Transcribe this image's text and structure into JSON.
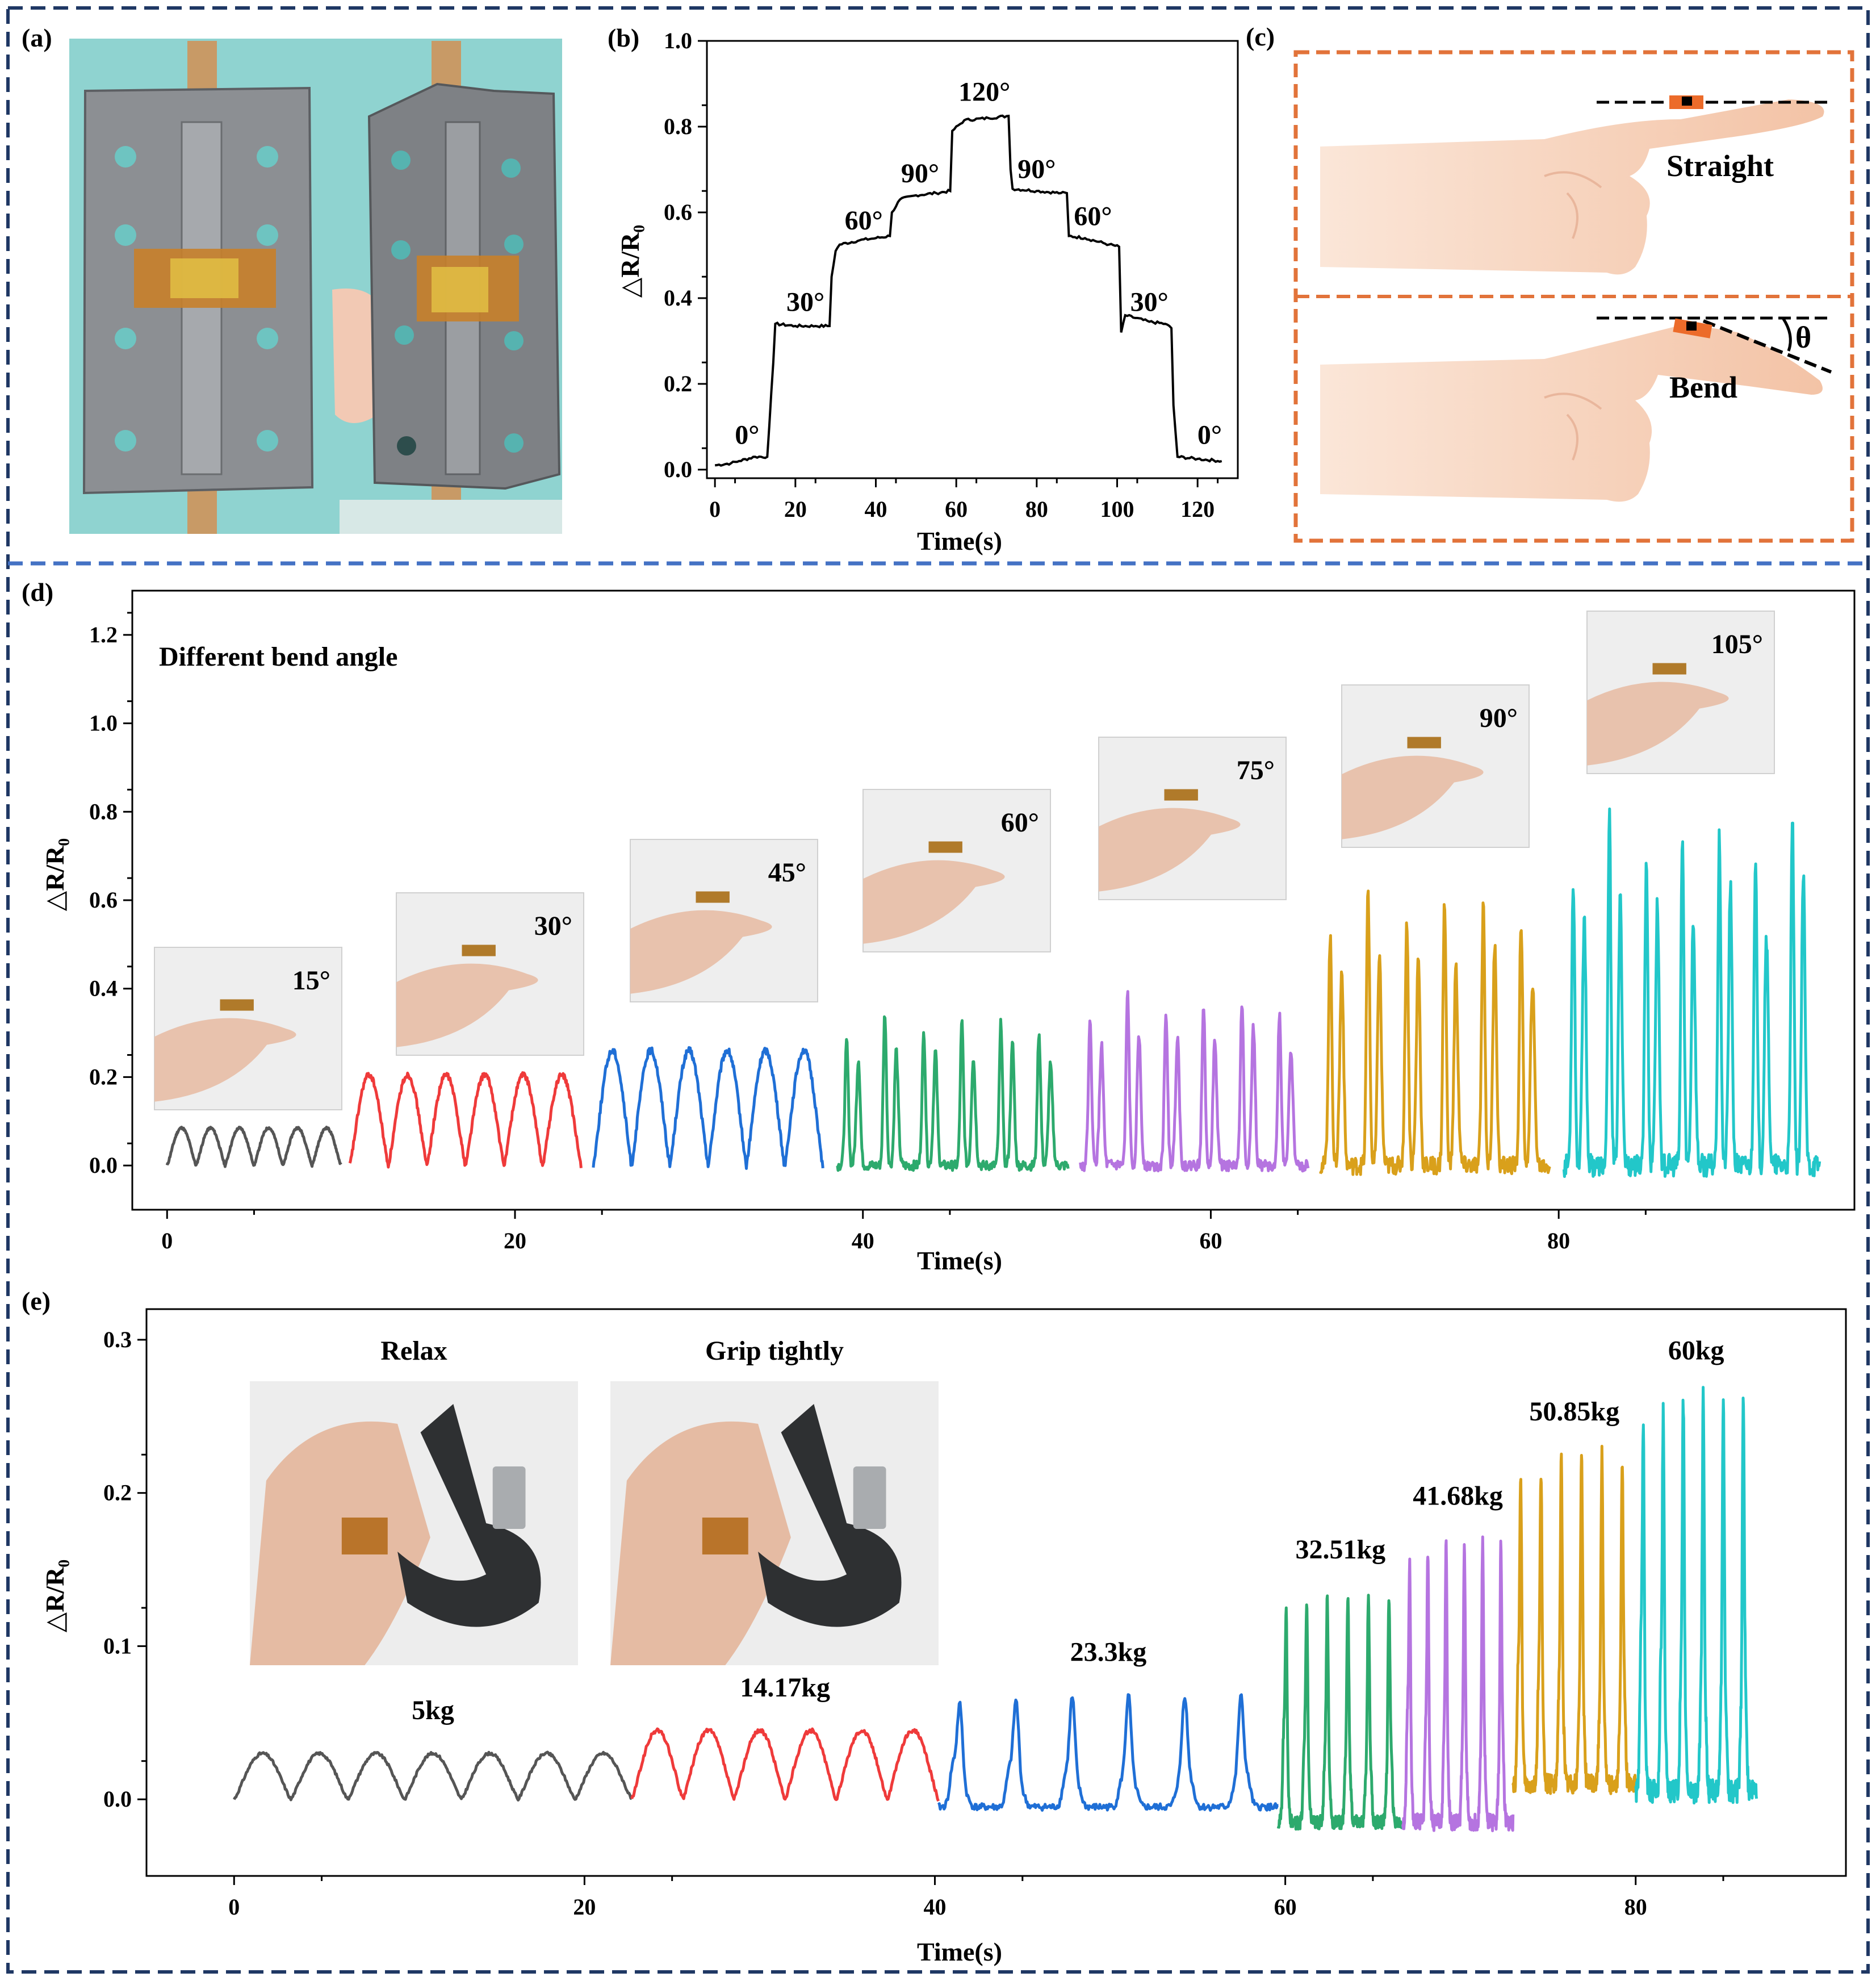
{
  "panels": {
    "a": "(a)",
    "b": "(b)",
    "c": "(c)",
    "d": "(d)",
    "e": "(e)"
  },
  "colors": {
    "frame": "#1f3864",
    "divider": "#4472c4",
    "orange": "#e2733a",
    "skin": "#f6d2bb",
    "s1": "#555555",
    "s2": "#ef3a3a",
    "s3": "#1f6fd6",
    "s4": "#2daa6d",
    "s5": "#b574e0",
    "s6": "#d9a01b",
    "s7": "#22c7c9"
  },
  "panel_c": {
    "straight_label": "Straight",
    "bend_label": "Bend",
    "theta_label": "θ",
    "icons": [
      "finger-straight-illustration",
      "finger-bend-illustration",
      "sensor-patch-icon"
    ]
  },
  "panel_a": {
    "photo": "hinge-photo-with-sensor"
  },
  "chart_data": [
    {
      "id": "b",
      "type": "line",
      "title": "",
      "xlabel": "Time(s)",
      "ylabel": "△R/R₀",
      "xlim": [
        -2,
        130
      ],
      "ylim": [
        -0.02,
        1.0
      ],
      "xticks": [
        "0",
        "20",
        "40",
        "60",
        "80",
        "100",
        "120"
      ],
      "yticks": [
        "0.0",
        "0.2",
        "0.4",
        "0.6",
        "0.8",
        "1.0"
      ],
      "series": [
        {
          "x": [
            0,
            4,
            6,
            10,
            13,
            13.5,
            14.5,
            15,
            20,
            25,
            28.5,
            29,
            30,
            31,
            36,
            40,
            43.5,
            44,
            46,
            50,
            55,
            58.5,
            59,
            62,
            68,
            73,
            73.5,
            74,
            80,
            86,
            87.5,
            88,
            92,
            98,
            100.5,
            101,
            102,
            108,
            112,
            113.5,
            114,
            115,
            120,
            126
          ],
          "y": [
            0.01,
            0.015,
            0.02,
            0.03,
            0.03,
            0.1,
            0.25,
            0.34,
            0.335,
            0.335,
            0.335,
            0.45,
            0.51,
            0.525,
            0.535,
            0.54,
            0.545,
            0.6,
            0.63,
            0.64,
            0.645,
            0.65,
            0.79,
            0.815,
            0.82,
            0.825,
            0.7,
            0.655,
            0.65,
            0.645,
            0.645,
            0.545,
            0.54,
            0.525,
            0.52,
            0.32,
            0.36,
            0.345,
            0.34,
            0.33,
            0.15,
            0.03,
            0.025,
            0.02
          ]
        }
      ],
      "annotations": [
        {
          "text": "0°",
          "x": 8,
          "y": 0.06
        },
        {
          "text": "30°",
          "x": 22.5,
          "y": 0.37
        },
        {
          "text": "60°",
          "x": 37,
          "y": 0.56
        },
        {
          "text": "90°",
          "x": 51,
          "y": 0.67
        },
        {
          "text": "120°",
          "x": 67,
          "y": 0.86
        },
        {
          "text": "90°",
          "x": 80,
          "y": 0.68
        },
        {
          "text": "60°",
          "x": 94,
          "y": 0.57
        },
        {
          "text": "30°",
          "x": 108,
          "y": 0.37
        },
        {
          "text": "0°",
          "x": 123,
          "y": 0.06
        }
      ]
    },
    {
      "id": "d",
      "type": "line",
      "title": "Different bend angle",
      "xlabel": "Time(s)",
      "ylabel": "△R/R₀",
      "xlim": [
        -2,
        97
      ],
      "ylim": [
        -0.1,
        1.3
      ],
      "xticks": [
        "0",
        "20",
        "40",
        "60",
        "80"
      ],
      "yticks": [
        "0.0",
        "0.2",
        "0.4",
        "0.6",
        "0.8",
        "1.0",
        "1.2"
      ],
      "series": [
        {
          "name": "15°",
          "color": "#555555",
          "start": 0,
          "end": 10,
          "cycles": 6,
          "peak": 0.085,
          "doublet": false
        },
        {
          "name": "30°",
          "color": "#ef3a3a",
          "start": 10.5,
          "end": 23.8,
          "cycles": 6,
          "peak": 0.205,
          "doublet": false
        },
        {
          "name": "45°",
          "color": "#1f6fd6",
          "start": 24.5,
          "end": 37.7,
          "cycles": 6,
          "peak": 0.26,
          "doublet": false
        },
        {
          "name": "60°",
          "color": "#2daa6d",
          "start": 38.5,
          "end": 51.8,
          "cycles": 6,
          "peak": 0.37,
          "doublet": true
        },
        {
          "name": "75°",
          "color": "#b574e0",
          "start": 52.5,
          "end": 65.6,
          "cycles": 6,
          "peak": 0.42,
          "doublet": true
        },
        {
          "name": "90°",
          "color": "#d9a01b",
          "start": 66.3,
          "end": 79.5,
          "cycles": 6,
          "peak": 0.68,
          "doublet": true
        },
        {
          "name": "105°",
          "color": "#22c7c9",
          "start": 80.3,
          "end": 95,
          "cycles": 7,
          "peak": 0.85,
          "doublet": true
        }
      ],
      "insets": [
        {
          "label": "15°",
          "icon": "finger-15deg-photo"
        },
        {
          "label": "30°",
          "icon": "finger-30deg-photo"
        },
        {
          "label": "45°",
          "icon": "finger-45deg-photo"
        },
        {
          "label": "60°",
          "icon": "finger-60deg-photo"
        },
        {
          "label": "75°",
          "icon": "finger-75deg-photo"
        },
        {
          "label": "90°",
          "icon": "finger-90deg-photo"
        },
        {
          "label": "105°",
          "icon": "finger-105deg-photo"
        }
      ]
    },
    {
      "id": "e",
      "type": "line",
      "title": "",
      "xlabel": "Time(s)",
      "ylabel": "△R/R₀",
      "xlim": [
        -5,
        92
      ],
      "ylim": [
        -0.05,
        0.32
      ],
      "xticks": [
        "0",
        "20",
        "40",
        "60",
        "80"
      ],
      "yticks": [
        "0.0",
        "0.1",
        "0.2",
        "0.3"
      ],
      "series": [
        {
          "name": "5kg",
          "color": "#555555",
          "start": 0,
          "end": 22.7,
          "cycles": 7,
          "peak": 0.03,
          "trough": 0.0
        },
        {
          "name": "14.17kg",
          "color": "#ef3a3a",
          "start": 22.7,
          "end": 40.2,
          "cycles": 6,
          "peak": 0.045,
          "trough": 0.0
        },
        {
          "name": "23.3kg",
          "color": "#1f6fd6",
          "start": 40.2,
          "end": 59.6,
          "cycles": 6,
          "peak": 0.068,
          "trough": -0.005
        },
        {
          "name": "32.51kg",
          "color": "#2daa6d",
          "start": 59.6,
          "end": 66.7,
          "cycles": 6,
          "peak": 0.135,
          "trough": -0.015
        },
        {
          "name": "41.68kg",
          "color": "#b574e0",
          "start": 66.7,
          "end": 73.0,
          "cycles": 6,
          "peak": 0.17,
          "trough": -0.015
        },
        {
          "name": "50.85kg",
          "color": "#d9a01b",
          "start": 73.0,
          "end": 80.0,
          "cycles": 6,
          "peak": 0.225,
          "trough": 0.01
        },
        {
          "name": "60kg",
          "color": "#22c7c9",
          "start": 80.0,
          "end": 86.9,
          "cycles": 6,
          "peak": 0.265,
          "trough": 0.005
        }
      ],
      "insets": [
        {
          "label": "Relax",
          "icon": "hand-relax-grip-photo"
        },
        {
          "label": "Grip tightly",
          "icon": "hand-grip-tightly-photo"
        }
      ]
    }
  ]
}
